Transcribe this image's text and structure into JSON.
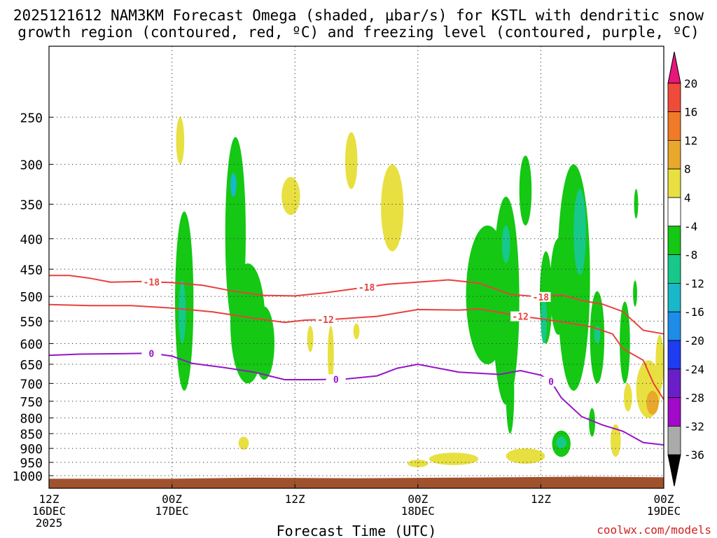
{
  "title": {
    "line1": "2025121612 NAM3KM Forecast Omega (shaded, μbar/s) for KSTL with dendritic snow",
    "line2": "growth region (contoured, red, ºC) and freezing level (contoured, purple, ºC)"
  },
  "credit": "coolwx.com/models",
  "chart_data": {
    "type": "time-height cross section",
    "xlabel": "Forecast Time (UTC)",
    "ylabel": "Pressure (mb)",
    "xlim_hours": [
      0,
      60
    ],
    "ylim_mb": [
      1050,
      190
    ],
    "x_ticks": [
      {
        "hour": 0,
        "line1": "12Z",
        "line2": "16DEC",
        "line3": "2025"
      },
      {
        "hour": 12,
        "line1": "00Z",
        "line2": "17DEC",
        "line3": ""
      },
      {
        "hour": 24,
        "line1": "12Z",
        "line2": "",
        "line3": ""
      },
      {
        "hour": 36,
        "line1": "00Z",
        "line2": "18DEC",
        "line3": ""
      },
      {
        "hour": 48,
        "line1": "12Z",
        "line2": "",
        "line3": ""
      },
      {
        "hour": 60,
        "line1": "00Z",
        "line2": "19DEC",
        "line3": ""
      }
    ],
    "y_ticks": [
      250,
      300,
      350,
      400,
      450,
      500,
      550,
      600,
      650,
      700,
      750,
      800,
      850,
      900,
      950,
      1000
    ],
    "grid": "dotted",
    "surface_fill_color": "#a0522d",
    "surface_pressure_mb": [
      [
        0,
        1012
      ],
      [
        12,
        1012
      ],
      [
        20,
        1008
      ],
      [
        30,
        1010
      ],
      [
        42,
        1007
      ],
      [
        52,
        1004
      ],
      [
        60,
        1006
      ]
    ],
    "colorbar": {
      "labels": [
        "20",
        "16",
        "12",
        "8",
        "4",
        "-4",
        "-8",
        "-12",
        "-16",
        "-20",
        "-24",
        "-28",
        "-32",
        "-36"
      ],
      "colors": [
        "#e8157a",
        "#f04a3a",
        "#f07a28",
        "#e8a82c",
        "#e8e040",
        "#ffffff",
        "#14c814",
        "#17c88a",
        "#19b8c8",
        "#1e8ce8",
        "#1e3cf0",
        "#6a1ec8",
        "#a00ac8",
        "#aaaaaa",
        "#000000"
      ]
    },
    "series": [
      {
        "name": "-18C isotherm",
        "color": "#e8413c",
        "label": "-18",
        "points": [
          [
            0,
            461
          ],
          [
            2,
            461
          ],
          [
            4,
            466
          ],
          [
            6,
            473
          ],
          [
            9,
            472
          ],
          [
            12,
            474
          ],
          [
            15,
            479
          ],
          [
            18,
            490
          ],
          [
            21,
            498
          ],
          [
            24,
            499
          ],
          [
            27,
            493
          ],
          [
            30,
            485
          ],
          [
            33,
            477
          ],
          [
            36,
            473
          ],
          [
            39,
            469
          ],
          [
            42,
            475
          ],
          [
            45,
            496
          ],
          [
            48,
            501
          ],
          [
            50,
            497
          ],
          [
            52,
            508
          ],
          [
            54,
            515
          ],
          [
            56,
            530
          ],
          [
            58,
            570
          ],
          [
            60,
            578
          ]
        ],
        "label_hours": [
          10,
          31,
          48
        ]
      },
      {
        "name": "-12C isotherm",
        "color": "#e8413c",
        "label": "-12",
        "points": [
          [
            0,
            516
          ],
          [
            4,
            518
          ],
          [
            8,
            518
          ],
          [
            12,
            523
          ],
          [
            16,
            531
          ],
          [
            20,
            544
          ],
          [
            23,
            553
          ],
          [
            25,
            548
          ],
          [
            28,
            546
          ],
          [
            32,
            540
          ],
          [
            36,
            526
          ],
          [
            40,
            527
          ],
          [
            42,
            525
          ],
          [
            44,
            532
          ],
          [
            46,
            540
          ],
          [
            48,
            545
          ],
          [
            51,
            555
          ],
          [
            53,
            563
          ],
          [
            55,
            578
          ],
          [
            56,
            612
          ],
          [
            58,
            640
          ],
          [
            59,
            700
          ],
          [
            60,
            745
          ]
        ],
        "label_hours": [
          27,
          46
        ]
      },
      {
        "name": "0C freezing level",
        "color": "#9614c8",
        "label": "0",
        "points": [
          [
            0,
            628
          ],
          [
            3,
            625
          ],
          [
            7,
            624
          ],
          [
            10,
            623
          ],
          [
            12,
            630
          ],
          [
            14,
            648
          ],
          [
            17,
            658
          ],
          [
            20,
            670
          ],
          [
            23,
            690
          ],
          [
            26,
            690
          ],
          [
            29,
            688
          ],
          [
            32,
            680
          ],
          [
            34,
            660
          ],
          [
            36,
            650
          ],
          [
            38,
            660
          ],
          [
            40,
            670
          ],
          [
            44,
            676
          ],
          [
            46,
            666
          ],
          [
            48,
            678
          ],
          [
            49,
            695
          ],
          [
            50,
            740
          ],
          [
            52,
            796
          ],
          [
            54,
            822
          ],
          [
            56,
            842
          ],
          [
            58,
            880
          ],
          [
            60,
            888
          ]
        ],
        "label_hours": [
          10,
          28,
          49
        ]
      }
    ]
  }
}
